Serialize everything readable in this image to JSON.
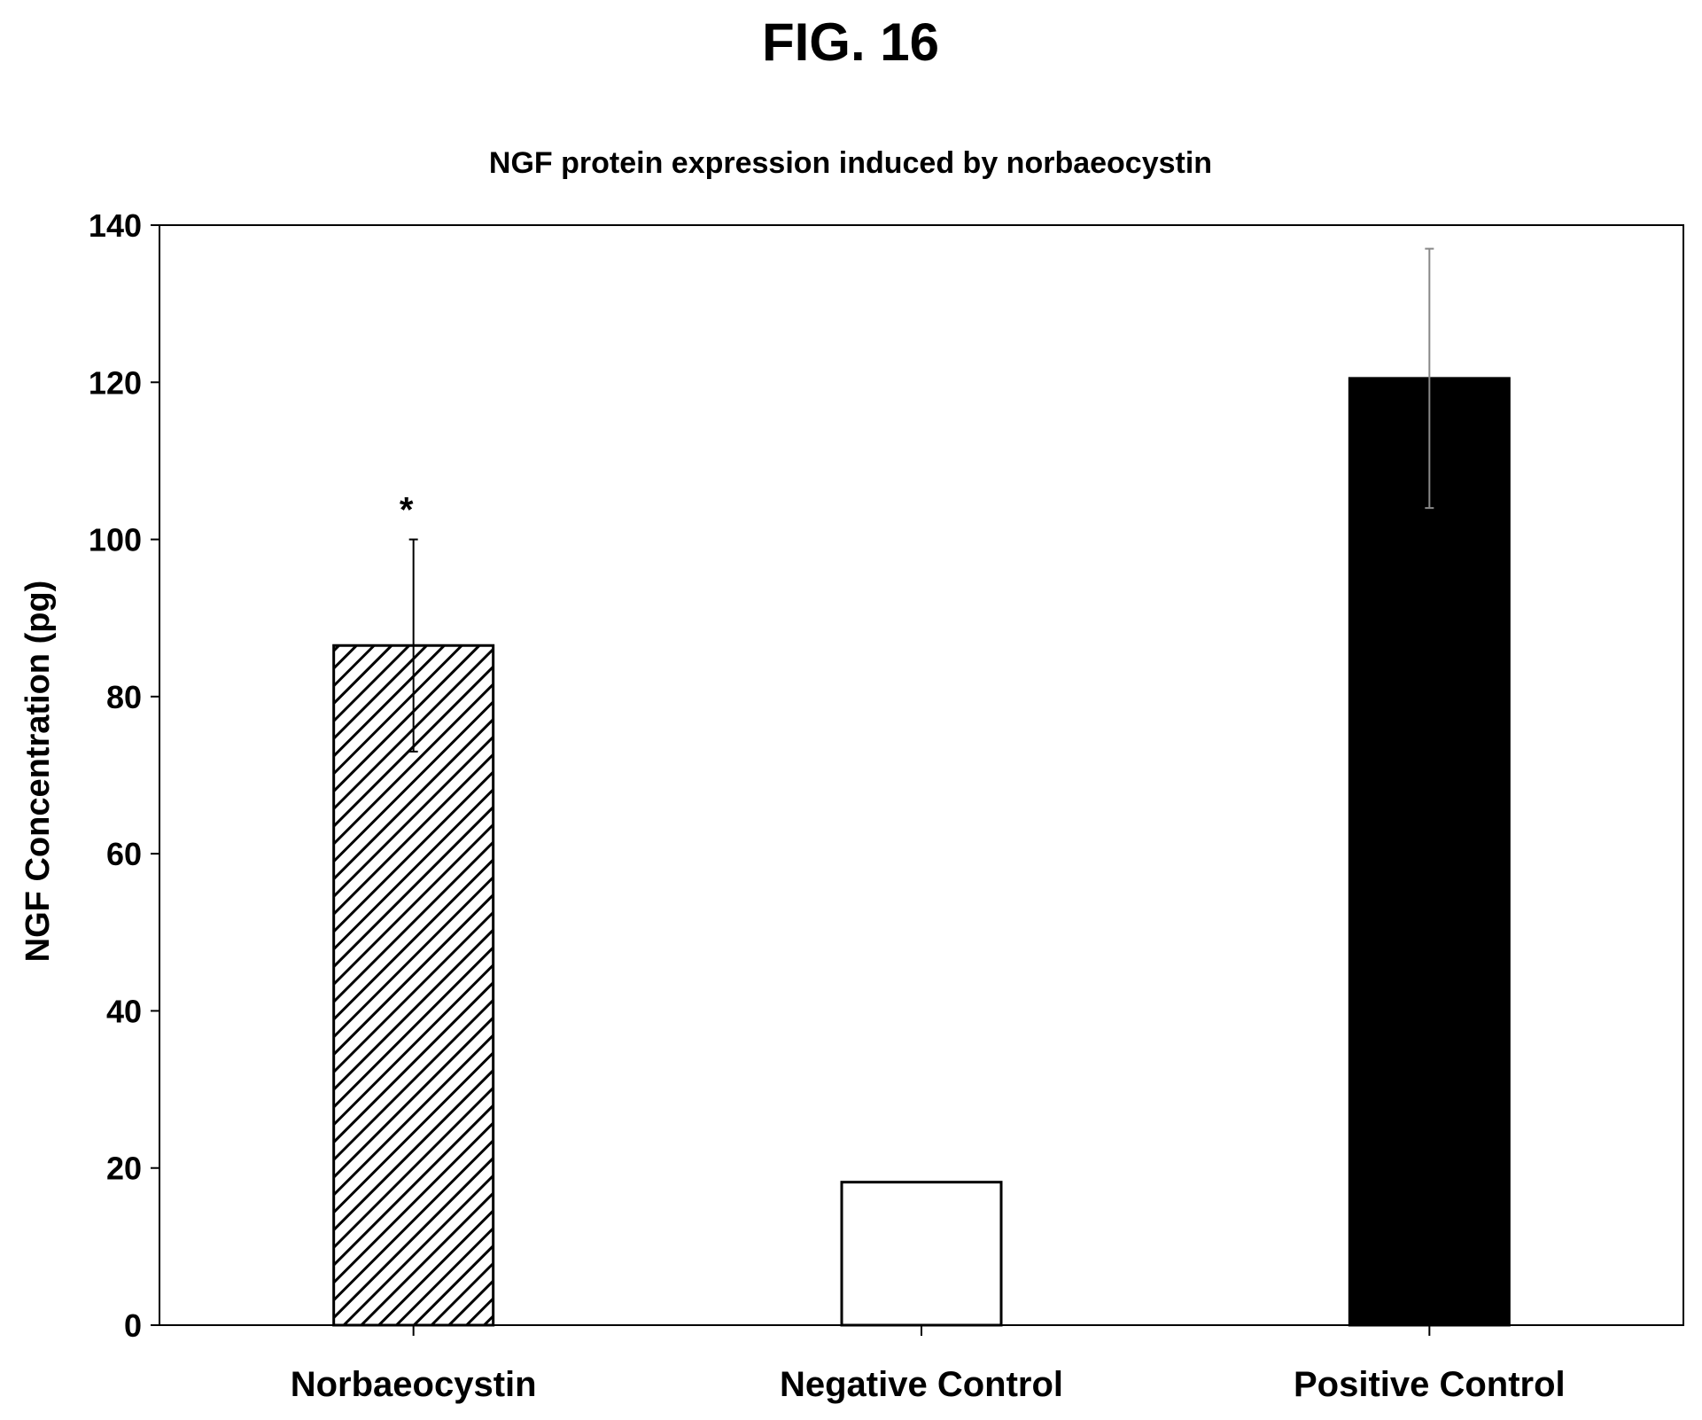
{
  "figure_label": "FIG. 16",
  "chart_data": {
    "type": "bar",
    "title": "NGF protein expression induced by norbaeocystin",
    "xlabel": "",
    "ylabel": "NGF Concentration (pg)",
    "ylim": [
      0,
      140
    ],
    "yticks": [
      0,
      20,
      40,
      60,
      80,
      100,
      120,
      140
    ],
    "categories": [
      "Norbaeocystin",
      "Negative Control",
      "Positive Control"
    ],
    "values": [
      86.5,
      18.2,
      120.5
    ],
    "error_bars": [
      13.5,
      0,
      16.5
    ],
    "annotations": [
      "*",
      "",
      ""
    ],
    "bar_styles": [
      "diagonal-hatch",
      "white",
      "black"
    ],
    "grid": false,
    "legend": "none"
  }
}
